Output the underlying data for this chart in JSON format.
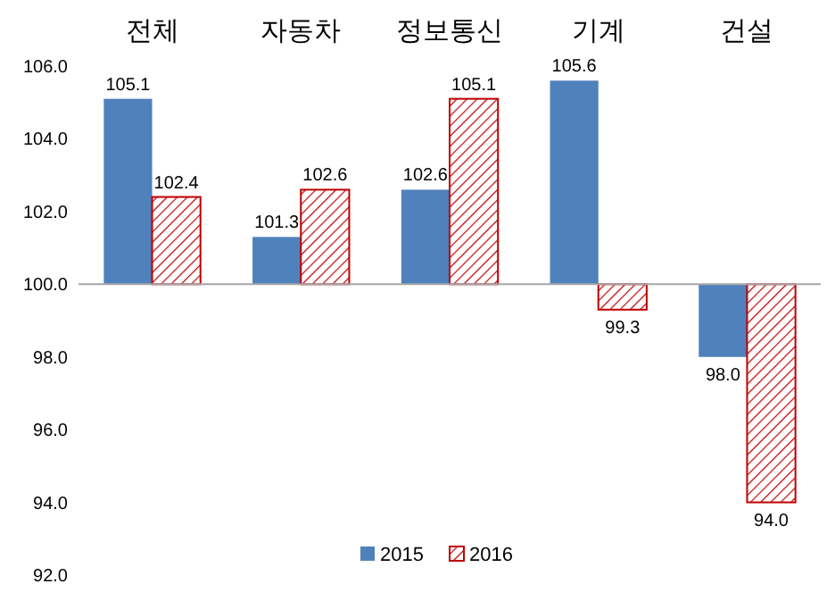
{
  "chart_data": {
    "type": "bar",
    "categories": [
      "전체",
      "자동차",
      "정보통신",
      "기계",
      "건설"
    ],
    "series": [
      {
        "name": "2015",
        "color": "#4f81bd",
        "base": [
          100,
          100,
          100,
          100,
          100
        ],
        "values": [
          5.1,
          1.3,
          2.6,
          5.6,
          -2.0
        ],
        "value_labels": [
          "105.1",
          "101.3",
          "102.6",
          "105.6",
          "98.0"
        ]
      },
      {
        "name": "2016",
        "color": "#c00000",
        "base": [
          100,
          100,
          100,
          100,
          100
        ],
        "values": [
          2.4,
          2.6,
          5.1,
          -0.7,
          -6.0
        ],
        "value_labels": [
          "102.4",
          "102.6",
          "105.1",
          "99.3",
          "94.0"
        ]
      }
    ],
    "ylim": [
      92,
      106
    ],
    "yticks": [
      {
        "value": 92,
        "label": "92.0"
      },
      {
        "value": 94,
        "label": "94.0"
      },
      {
        "value": 96,
        "label": "96.0"
      },
      {
        "value": 98,
        "label": "98.0"
      },
      {
        "value": 100,
        "label": "100.0"
      },
      {
        "value": 102,
        "label": "102.0"
      },
      {
        "value": 104,
        "label": "104.0"
      },
      {
        "value": 106,
        "label": "106.0"
      }
    ],
    "ref_lines": [
      {
        "axis": "y",
        "value": 100,
        "color": "#a6a6a6"
      }
    ],
    "legend": "bottom"
  }
}
